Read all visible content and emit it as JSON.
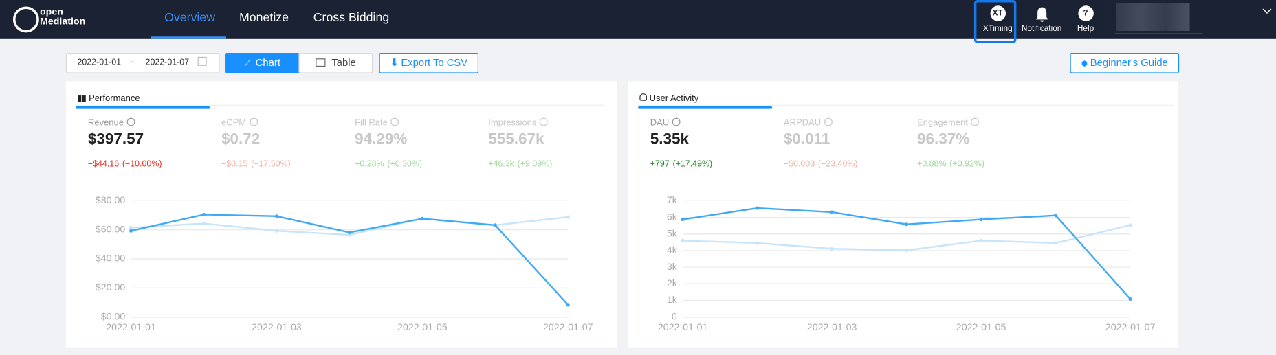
{
  "nav": {
    "brand_top": "open",
    "brand_bottom": "Mediation",
    "tabs": [
      "Overview",
      "Monetize",
      "Cross Bidding"
    ],
    "tools": [
      {
        "icon": "XT",
        "label": "XTiming"
      },
      {
        "label": "Notification"
      },
      {
        "icon": "?",
        "label": "Help"
      }
    ]
  },
  "toolbar": {
    "date_start": "2022-01-01",
    "date_sep": "~",
    "date_end": "2022-01-07",
    "view_modes": [
      "Chart",
      "Table"
    ],
    "export": "Export To CSV",
    "guide": "Beginner's Guide"
  },
  "panels": [
    {
      "title": "Performance",
      "metrics": [
        {
          "label": "Revenue",
          "value": "$397.57",
          "change": "−$44.16",
          "change_pct": "(−10.00%)"
        },
        {
          "label": "eCPM",
          "value": "$0.72",
          "change": "−$0.15",
          "change_pct": "(−17.50%)"
        },
        {
          "label": "Fill Rate",
          "value": "94.29%",
          "change": "+0.28%",
          "change_pct": "(+0.30%)"
        },
        {
          "label": "Impressions",
          "value": "555.67k",
          "change": "+46.3k",
          "change_pct": "(+9.09%)"
        }
      ]
    },
    {
      "title": "User Activity",
      "metrics": [
        {
          "label": "DAU",
          "value": "5.35k",
          "change": "+797",
          "change_pct": "(+17.49%)"
        },
        {
          "label": "ARPDAU",
          "value": "$0.011",
          "change": "−$0.003",
          "change_pct": "(−23.40%)"
        },
        {
          "label": "Engagement",
          "value": "96.37%",
          "change": "+0.88%",
          "change_pct": "(+0.92%)"
        }
      ]
    }
  ],
  "chart_data": [
    {
      "type": "line",
      "categories": [
        "2022-01-01",
        null,
        "2022-01-03",
        null,
        "2022-01-05",
        null,
        "2022-01-07"
      ],
      "series": [
        {
          "color": "#c6e4fb",
          "values": [
            61.5,
            64.3,
            59.3,
            56.5,
            67.7,
            63.2,
            68.8
          ]
        },
        {
          "color": "#40a9f5",
          "values": [
            59.3,
            70.5,
            69.4,
            58.2,
            67.7,
            63.2,
            8.4
          ]
        }
      ],
      "ylim": [
        0,
        80
      ],
      "yticks": [
        {
          "value": 0,
          "label": "$0.00"
        },
        {
          "value": 20,
          "label": "$20.00"
        },
        {
          "value": 40,
          "label": "$40.00"
        },
        {
          "value": 60,
          "label": "$60.00"
        },
        {
          "value": 80,
          "label": "$80.00"
        }
      ],
      "grid": true
    },
    {
      "type": "line",
      "categories": [
        "2022-01-01",
        null,
        "2022-01-03",
        null,
        "2022-01-05",
        null,
        "2022-01-07"
      ],
      "series": [
        {
          "color": "#c6e4fb",
          "values": [
            4601,
            4454,
            4111,
            4013,
            4601,
            4454,
            5531
          ]
        },
        {
          "color": "#40a9f5",
          "values": [
            5874,
            6559,
            6314,
            5580,
            5874,
            6118,
            1077
          ]
        }
      ],
      "ylim": [
        0,
        7000
      ],
      "yticks": [
        0,
        {
          "value": 1000,
          "label": "1k"
        },
        {
          "value": 2000,
          "label": "2k"
        },
        {
          "value": 3000,
          "label": "3k"
        },
        {
          "value": 4000,
          "label": "4k"
        },
        {
          "value": 5000,
          "label": "5k"
        },
        {
          "value": 6000,
          "label": "6k"
        },
        {
          "value": 7000,
          "label": "7k"
        }
      ],
      "grid": true
    }
  ]
}
